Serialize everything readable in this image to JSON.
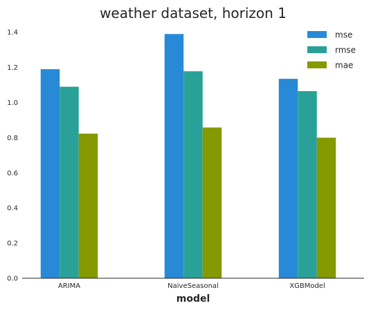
{
  "chart_data": {
    "type": "bar",
    "title": "weather dataset, horizon 1",
    "xlabel": "model",
    "ylabel": "",
    "categories": [
      "ARIMA",
      "NaiveSeasonal",
      "XGBModel"
    ],
    "series": [
      {
        "name": "mse",
        "values": [
          1.19,
          1.39,
          1.135
        ],
        "color": "#288ad6"
      },
      {
        "name": "rmse",
        "values": [
          1.09,
          1.178,
          1.065
        ],
        "color": "#2aa198"
      },
      {
        "name": "mae",
        "values": [
          0.823,
          0.858,
          0.8
        ],
        "color": "#859900"
      }
    ],
    "ylim": [
      0,
      1.45
    ],
    "yticks": [
      "0.0",
      "0.2",
      "0.4",
      "0.6",
      "0.8",
      "1.0",
      "1.2",
      "1.4"
    ],
    "grid": false,
    "legend_position": "top-right"
  }
}
